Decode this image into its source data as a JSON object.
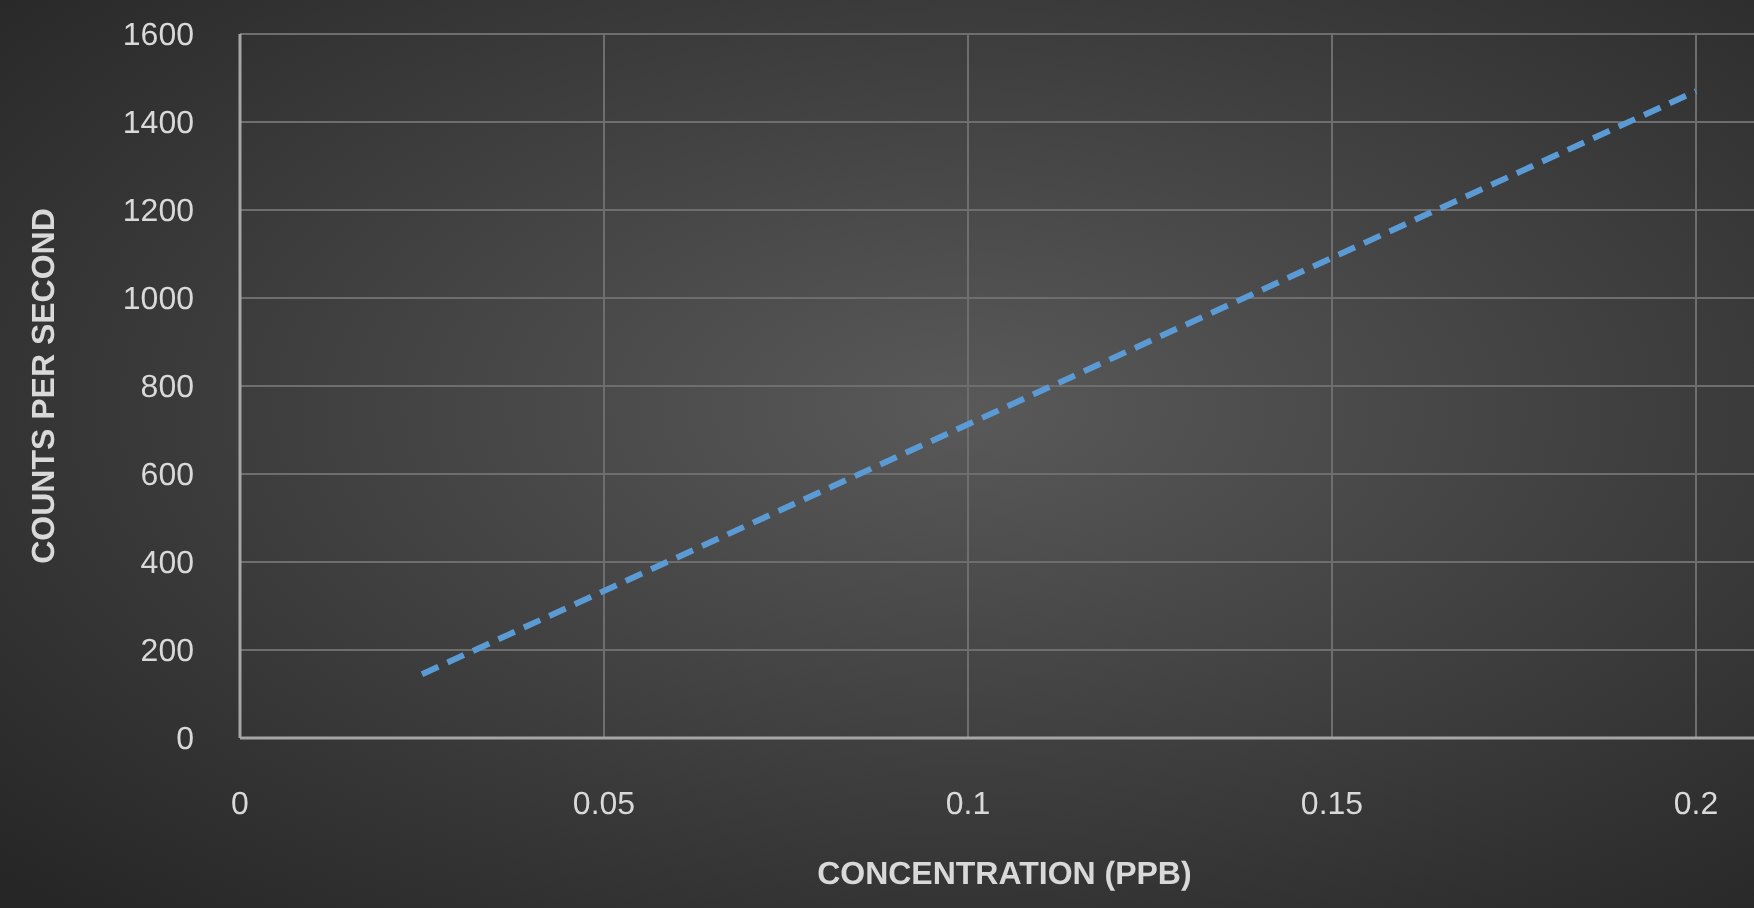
{
  "chart_data": {
    "type": "line",
    "xlabel": "CONCENTRATION (PPB)",
    "ylabel": "COUNTS PER SECOND",
    "x": [
      0.025,
      0.2
    ],
    "series": [
      {
        "color": "#5b9bd5",
        "values": [
          145,
          1470
        ]
      }
    ],
    "xlim": [
      0,
      0.208
    ],
    "xticks": [
      0,
      0.05,
      0.1,
      0.15,
      0.2
    ],
    "ylim": [
      0,
      1600
    ],
    "yticks": [
      0,
      200,
      400,
      600,
      800,
      1000,
      1200,
      1400,
      1600
    ],
    "grid": true,
    "line_style": "dashed",
    "marker": "none"
  }
}
